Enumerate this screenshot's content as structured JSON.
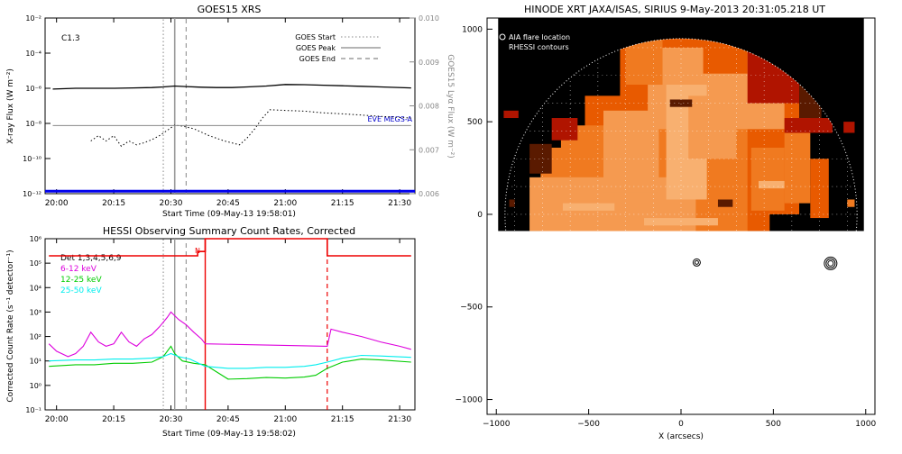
{
  "chart_data": [
    {
      "id": "goes",
      "type": "line",
      "title": "GOES15 XRS",
      "xlabel": "Start Time (09-May-13 19:58:01)",
      "ylabel": "X-ray Flux (W m⁻²)",
      "y2label": "GOES15 Lyα Flux (W m⁻²)",
      "xlim": [
        "19:57",
        "21:34"
      ],
      "ylim": [
        1e-12,
        0.01
      ],
      "yscale": "log",
      "y2lim": [
        0.006,
        0.01
      ],
      "x_ticks": [
        "20:00",
        "20:15",
        "20:30",
        "20:45",
        "21:00",
        "21:15",
        "21:30"
      ],
      "y_ticks": [
        "10⁻¹²",
        "10⁻¹⁰",
        "10⁻⁸",
        "10⁻⁶",
        "10⁻⁴",
        "10⁻²"
      ],
      "y2_ticks": [
        "0.006",
        "0.007",
        "0.008",
        "0.009",
        "0.010"
      ],
      "annotation": "C1.3",
      "markers": [
        {
          "name": "GOES Start",
          "time": "20:28",
          "style": "dotted"
        },
        {
          "name": "GOES Peak",
          "time": "20:31",
          "style": "solid"
        },
        {
          "name": "GOES End",
          "time": "20:34",
          "style": "dashed"
        }
      ],
      "legend": [
        "GOES Start",
        "GOES Peak",
        "GOES End"
      ],
      "legend_position": "top-right",
      "extra_label": "EVE MEGS-A",
      "series": [
        {
          "key": "long",
          "color": "#000000",
          "style": "solid",
          "x": [
            "19:59",
            "20:05",
            "20:10",
            "20:15",
            "20:20",
            "20:25",
            "20:28",
            "20:31",
            "20:34",
            "20:38",
            "20:42",
            "20:46",
            "20:50",
            "20:55",
            "21:00",
            "21:05",
            "21:10",
            "21:15",
            "21:20",
            "21:25",
            "21:33"
          ],
          "y": [
            9e-07,
            1e-06,
            1e-06,
            1e-06,
            1.05e-06,
            1.1e-06,
            1.2e-06,
            1.35e-06,
            1.25e-06,
            1.15e-06,
            1.1e-06,
            1.1e-06,
            1.2e-06,
            1.35e-06,
            1.65e-06,
            1.6e-06,
            1.5e-06,
            1.4e-06,
            1.3e-06,
            1.2e-06,
            1.05e-06
          ]
        },
        {
          "key": "short",
          "color": "#000000",
          "style": "dotted",
          "x": [
            "20:09",
            "20:11",
            "20:13",
            "20:15",
            "20:17",
            "20:19",
            "20:21",
            "20:23",
            "20:25",
            "20:27",
            "20:29",
            "20:31",
            "20:33",
            "20:36",
            "20:40",
            "20:44",
            "20:48",
            "20:50",
            "20:52",
            "20:54",
            "20:56",
            "21:00",
            "21:05",
            "21:10",
            "21:15",
            "21:20",
            "21:25",
            "21:33"
          ],
          "y": [
            1e-09,
            2e-09,
            1e-09,
            2e-09,
            5e-10,
            1e-09,
            6e-10,
            8e-10,
            1.2e-09,
            2e-09,
            4e-09,
            8e-09,
            7e-09,
            5e-09,
            2e-09,
            1e-09,
            6e-10,
            1.5e-09,
            5e-09,
            2e-08,
            6e-08,
            5.5e-08,
            5e-08,
            4e-08,
            3.5e-08,
            3e-08,
            2.5e-08,
            2e-08
          ]
        },
        {
          "key": "lya",
          "color": "#888888",
          "style": "solid",
          "x": [
            "19:59",
            "21:33"
          ],
          "y": [
            0.00755,
            0.00755
          ]
        },
        {
          "key": "eve",
          "color": "#0000ee",
          "style": "solid",
          "x": [
            "19:57",
            "21:34"
          ],
          "y": [
            1.4e-12,
            1.4e-12
          ]
        }
      ]
    },
    {
      "id": "hessi",
      "type": "line",
      "title": "HESSI Observing Summary Count Rates, Corrected",
      "xlabel": "Start Time (09-May-13 19:58:02)",
      "ylabel": "Corrected Count Rate (s⁻¹ detector⁻¹)",
      "xlim": [
        "19:57",
        "21:34"
      ],
      "ylim": [
        0.1,
        1000000.0
      ],
      "yscale": "log",
      "x_ticks": [
        "20:00",
        "20:15",
        "20:30",
        "20:45",
        "21:00",
        "21:15",
        "21:30"
      ],
      "y_ticks": [
        "10⁻¹",
        "10⁰",
        "10¹",
        "10²",
        "10³",
        "10⁴",
        "10⁵",
        "10⁶"
      ],
      "night_label": "N",
      "night": {
        "start": "20:39",
        "end": "21:11",
        "level": 1000000.0
      },
      "markers": [
        {
          "time": "20:28",
          "style": "dotted",
          "color": "#999999"
        },
        {
          "time": "20:31",
          "style": "solid",
          "color": "#999999"
        },
        {
          "time": "20:34",
          "style": "dashed",
          "color": "#999999"
        },
        {
          "time": "20:39",
          "style": "solid",
          "color": "#ee0000"
        },
        {
          "time": "21:11",
          "style": "dashed",
          "color": "#ee0000"
        }
      ],
      "legend_position": "top-left",
      "series": [
        {
          "name": "Det 1,3,4,5,6,9",
          "color": "#ee0000",
          "x": [
            "19:58",
            "20:37",
            "20:37",
            "20:39",
            "20:39",
            "21:11",
            "21:11",
            "21:33"
          ],
          "y": [
            200000.0,
            200000.0,
            300000.0,
            300000.0,
            1000000.0,
            1000000.0,
            200000.0,
            200000.0
          ]
        },
        {
          "name": "6-12 keV",
          "color": "#dd00dd",
          "x": [
            "19:58",
            "20:00",
            "20:03",
            "20:05",
            "20:07",
            "20:09",
            "20:11",
            "20:13",
            "20:15",
            "20:17",
            "20:19",
            "20:21",
            "20:23",
            "20:25",
            "20:27",
            "20:29",
            "20:30",
            "20:32",
            "20:34",
            "20:36",
            "20:38",
            "20:39",
            "21:11",
            "21:12",
            "21:15",
            "21:20",
            "21:25",
            "21:30",
            "21:33"
          ],
          "y": [
            50,
            25,
            15,
            20,
            40,
            150,
            60,
            40,
            50,
            150,
            60,
            40,
            80,
            120,
            250,
            600,
            1000,
            500,
            300,
            150,
            80,
            50,
            40,
            200,
            150,
            100,
            60,
            40,
            30
          ]
        },
        {
          "name": "12-25 keV",
          "color": "#00cc00",
          "x": [
            "19:58",
            "20:05",
            "20:10",
            "20:15",
            "20:20",
            "20:25",
            "20:28",
            "20:30",
            "20:31",
            "20:33",
            "20:36",
            "20:39",
            "20:45",
            "20:50",
            "20:55",
            "21:00",
            "21:05",
            "21:08",
            "21:11",
            "21:15",
            "21:20",
            "21:25",
            "21:33"
          ],
          "y": [
            6,
            7,
            7,
            8,
            8,
            9,
            15,
            40,
            20,
            10,
            8,
            7,
            1.8,
            1.9,
            2.1,
            2,
            2.2,
            2.6,
            5,
            9,
            12,
            11,
            9
          ]
        },
        {
          "name": "25-50 keV",
          "color": "#00eeee",
          "x": [
            "19:58",
            "20:05",
            "20:10",
            "20:15",
            "20:20",
            "20:25",
            "20:28",
            "20:30",
            "20:32",
            "20:35",
            "20:39",
            "20:45",
            "20:50",
            "20:55",
            "21:00",
            "21:05",
            "21:08",
            "21:11",
            "21:15",
            "21:20",
            "21:25",
            "21:33"
          ],
          "y": [
            10,
            11,
            11,
            12,
            12,
            13,
            15,
            20,
            15,
            12,
            6,
            5,
            5,
            5.5,
            5.5,
            6,
            7,
            9,
            13,
            17,
            16,
            14
          ]
        }
      ]
    },
    {
      "id": "xrt",
      "type": "heatmap",
      "title": "HINODE XRT JAXA/ISAS, SIRIUS  9-May-2013 20:31:05.218 UT",
      "xlabel": "X (arcsecs)",
      "ylabel": "",
      "xlim": [
        -1050,
        1050
      ],
      "ylim": [
        -1080,
        1060
      ],
      "x_ticks": [
        "−1000",
        "−500",
        "0",
        "500",
        "1000"
      ],
      "y_ticks": [
        "−1000",
        "−500",
        "0",
        "500",
        "1000"
      ],
      "legend": [
        "AIA flare location",
        "RHESSI contours"
      ],
      "legend_position": "top-left",
      "image_extent": {
        "x": [
          -990,
          990
        ],
        "y": [
          -90,
          1060
        ]
      },
      "limb_radius": 953,
      "contour_points": [
        {
          "x": 85,
          "y": -260
        },
        {
          "x": 810,
          "y": -265
        }
      ],
      "colors": {
        "dark": "#5a1a00",
        "red": "#b01400",
        "mid": "#e85a00",
        "orange": "#f07a20",
        "light": "#f59a50",
        "pale": "#f8b070"
      }
    }
  ]
}
